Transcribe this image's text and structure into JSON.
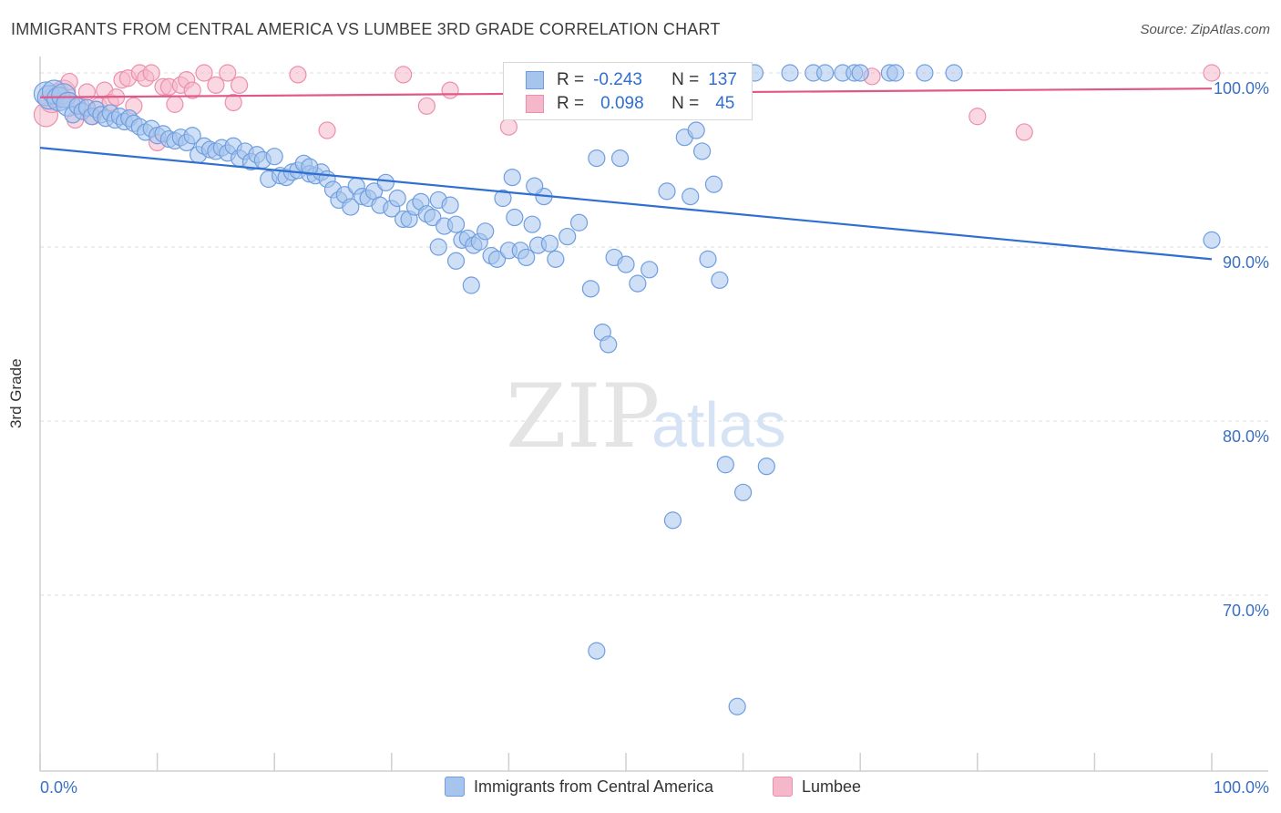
{
  "title": "IMMIGRANTS FROM CENTRAL AMERICA VS LUMBEE 3RD GRADE CORRELATION CHART",
  "source": "Source: ZipAtlas.com",
  "watermark": {
    "zip": "ZIP",
    "atlas": "atlas"
  },
  "colors": {
    "blue_fill": "#a7c4ec",
    "blue_stroke": "#6f9ee0",
    "blue_line": "#2f6fd0",
    "pink_fill": "#f5b8cb",
    "pink_stroke": "#ec8fae",
    "pink_line": "#e0588a",
    "grid": "#dcdcdc",
    "tick_text": "#3a6fc4"
  },
  "legend_box": {
    "rows": [
      {
        "r_label": "R =",
        "r_value": "-0.243",
        "n_label": "N =",
        "n_value": "137"
      },
      {
        "r_label": "R =",
        "r_value": "0.098",
        "n_label": "N =",
        "n_value": "45"
      }
    ]
  },
  "chart_data": {
    "type": "scatter",
    "xlabel": "",
    "ylabel": "3rd Grade",
    "xlim": [
      0,
      100
    ],
    "ylim": [
      62,
      101
    ],
    "x_tick_labels": [
      "0.0%",
      "100.0%"
    ],
    "y_ticks": [
      {
        "value": 70,
        "label": "70.0%"
      },
      {
        "value": 80,
        "label": "80.0%"
      },
      {
        "value": 90,
        "label": "90.0%"
      },
      {
        "value": 100,
        "label": "100.0%"
      }
    ],
    "grid": true,
    "legend_position": "bottom",
    "series": [
      {
        "name": "Immigrants from Central America",
        "color": "#6f9ee0",
        "trend": {
          "x": [
            0,
            100
          ],
          "y": [
            95.7,
            89.3
          ]
        },
        "points": [
          [
            0.5,
            98.8
          ],
          [
            0.8,
            98.6
          ],
          [
            1.2,
            98.9
          ],
          [
            1.6,
            98.5
          ],
          [
            2.0,
            98.7
          ],
          [
            2.4,
            98.2
          ],
          [
            2.8,
            97.6
          ],
          [
            3.2,
            98.1
          ],
          [
            3.6,
            97.8
          ],
          [
            4.0,
            98.0
          ],
          [
            4.4,
            97.5
          ],
          [
            4.8,
            97.9
          ],
          [
            5.2,
            97.6
          ],
          [
            5.6,
            97.4
          ],
          [
            6.0,
            97.7
          ],
          [
            6.4,
            97.3
          ],
          [
            6.8,
            97.5
          ],
          [
            7.2,
            97.2
          ],
          [
            7.6,
            97.4
          ],
          [
            8.0,
            97.1
          ],
          [
            8.5,
            96.9
          ],
          [
            9.0,
            96.6
          ],
          [
            9.5,
            96.8
          ],
          [
            10.0,
            96.4
          ],
          [
            10.5,
            96.5
          ],
          [
            11.0,
            96.2
          ],
          [
            11.5,
            96.1
          ],
          [
            12.0,
            96.3
          ],
          [
            12.5,
            96.0
          ],
          [
            13.0,
            96.4
          ],
          [
            13.5,
            95.3
          ],
          [
            14.0,
            95.8
          ],
          [
            14.5,
            95.6
          ],
          [
            15.0,
            95.5
          ],
          [
            15.5,
            95.7
          ],
          [
            16.0,
            95.4
          ],
          [
            16.5,
            95.8
          ],
          [
            17.0,
            95.1
          ],
          [
            17.5,
            95.5
          ],
          [
            18.0,
            94.9
          ],
          [
            18.5,
            95.3
          ],
          [
            19.0,
            95.0
          ],
          [
            19.5,
            93.9
          ],
          [
            20.0,
            95.2
          ],
          [
            20.5,
            94.1
          ],
          [
            21.0,
            94.0
          ],
          [
            21.5,
            94.3
          ],
          [
            22.0,
            94.4
          ],
          [
            22.5,
            94.8
          ],
          [
            23.0,
            94.2
          ],
          [
            23.5,
            94.1
          ],
          [
            24.0,
            94.3
          ],
          [
            24.5,
            93.9
          ],
          [
            25.0,
            93.3
          ],
          [
            25.5,
            92.7
          ],
          [
            26.0,
            93.0
          ],
          [
            26.5,
            92.3
          ],
          [
            27.0,
            93.5
          ],
          [
            27.5,
            92.9
          ],
          [
            28.0,
            92.8
          ],
          [
            28.5,
            93.2
          ],
          [
            29.0,
            92.4
          ],
          [
            29.5,
            93.7
          ],
          [
            30.0,
            92.2
          ],
          [
            30.5,
            92.8
          ],
          [
            31.0,
            91.6
          ],
          [
            31.5,
            91.6
          ],
          [
            32.0,
            92.3
          ],
          [
            32.5,
            92.6
          ],
          [
            33.0,
            91.9
          ],
          [
            33.5,
            91.7
          ],
          [
            34.0,
            92.7
          ],
          [
            34.5,
            91.2
          ],
          [
            35.0,
            92.4
          ],
          [
            35.5,
            91.3
          ],
          [
            36.0,
            90.4
          ],
          [
            36.5,
            90.5
          ],
          [
            37.0,
            90.1
          ],
          [
            37.5,
            90.3
          ],
          [
            38.0,
            90.9
          ],
          [
            38.5,
            89.5
          ],
          [
            39.0,
            89.3
          ],
          [
            40.0,
            89.8
          ],
          [
            40.5,
            91.7
          ],
          [
            41.0,
            89.8
          ],
          [
            41.5,
            89.4
          ],
          [
            42.0,
            91.3
          ],
          [
            42.5,
            90.1
          ],
          [
            43.0,
            92.9
          ],
          [
            43.5,
            90.2
          ],
          [
            23.0,
            94.6
          ],
          [
            39.5,
            92.8
          ],
          [
            40.3,
            94.0
          ],
          [
            42.2,
            93.5
          ],
          [
            44.0,
            89.3
          ],
          [
            45.0,
            90.6
          ],
          [
            46.0,
            91.4
          ],
          [
            34.0,
            90.0
          ],
          [
            35.5,
            89.2
          ],
          [
            36.8,
            87.8
          ],
          [
            47.5,
            95.1
          ],
          [
            49.5,
            95.1
          ],
          [
            47.0,
            87.6
          ],
          [
            48.0,
            85.1
          ],
          [
            48.5,
            84.4
          ],
          [
            49.0,
            89.4
          ],
          [
            50.0,
            89.0
          ],
          [
            51.0,
            87.9
          ],
          [
            52.0,
            88.7
          ],
          [
            53.5,
            93.2
          ],
          [
            55.0,
            96.3
          ],
          [
            56.0,
            96.7
          ],
          [
            56.5,
            95.5
          ],
          [
            55.5,
            92.9
          ],
          [
            57.0,
            89.3
          ],
          [
            58.0,
            88.1
          ],
          [
            57.5,
            93.6
          ],
          [
            58.5,
            77.5
          ],
          [
            54.0,
            74.3
          ],
          [
            60.0,
            75.9
          ],
          [
            62.0,
            77.4
          ],
          [
            47.5,
            66.8
          ],
          [
            59.5,
            63.6
          ],
          [
            46.5,
            100.0
          ],
          [
            52.0,
            100.0
          ],
          [
            61.0,
            100.0
          ],
          [
            64.0,
            100.0
          ],
          [
            66.0,
            100.0
          ],
          [
            67.0,
            100.0
          ],
          [
            68.5,
            100.0
          ],
          [
            69.5,
            100.0
          ],
          [
            70.0,
            100.0
          ],
          [
            72.5,
            100.0
          ],
          [
            73.0,
            100.0
          ],
          [
            75.5,
            100.0
          ],
          [
            78.0,
            100.0
          ],
          [
            100.0,
            90.4
          ]
        ]
      },
      {
        "name": "Lumbee",
        "color": "#ec8fae",
        "trend": {
          "x": [
            0,
            100
          ],
          "y": [
            98.6,
            99.1
          ]
        },
        "points": [
          [
            0.5,
            97.6
          ],
          [
            1.0,
            98.4
          ],
          [
            1.5,
            98.7
          ],
          [
            2.0,
            98.9
          ],
          [
            2.5,
            99.5
          ],
          [
            3.0,
            97.3
          ],
          [
            3.5,
            98.1
          ],
          [
            4.0,
            98.9
          ],
          [
            4.5,
            97.5
          ],
          [
            5.0,
            98.1
          ],
          [
            5.5,
            99.0
          ],
          [
            6.0,
            98.3
          ],
          [
            6.5,
            98.6
          ],
          [
            7.0,
            99.6
          ],
          [
            7.5,
            99.7
          ],
          [
            8.0,
            98.1
          ],
          [
            8.5,
            100.0
          ],
          [
            9.0,
            99.7
          ],
          [
            9.5,
            100.0
          ],
          [
            10.0,
            96.0
          ],
          [
            10.5,
            99.2
          ],
          [
            11.0,
            99.2
          ],
          [
            11.5,
            98.2
          ],
          [
            12.0,
            99.3
          ],
          [
            12.5,
            99.6
          ],
          [
            13.0,
            99.0
          ],
          [
            14.0,
            100.0
          ],
          [
            15.0,
            99.3
          ],
          [
            16.0,
            100.0
          ],
          [
            16.5,
            98.3
          ],
          [
            17.0,
            99.3
          ],
          [
            22.0,
            99.9
          ],
          [
            31.0,
            99.9
          ],
          [
            24.5,
            96.7
          ],
          [
            33.0,
            98.1
          ],
          [
            35.0,
            99.0
          ],
          [
            40.0,
            96.9
          ],
          [
            42.0,
            99.5
          ],
          [
            50.0,
            97.9
          ],
          [
            55.0,
            99.7
          ],
          [
            58.0,
            99.8
          ],
          [
            71.0,
            99.8
          ],
          [
            80.0,
            97.5
          ],
          [
            84.0,
            96.6
          ],
          [
            100.0,
            100.0
          ]
        ]
      }
    ]
  },
  "legend_bottom": [
    {
      "label": "Immigrants from Central America",
      "color": "#a7c4ec"
    },
    {
      "label": "Lumbee",
      "color": "#f5b8cb"
    }
  ]
}
